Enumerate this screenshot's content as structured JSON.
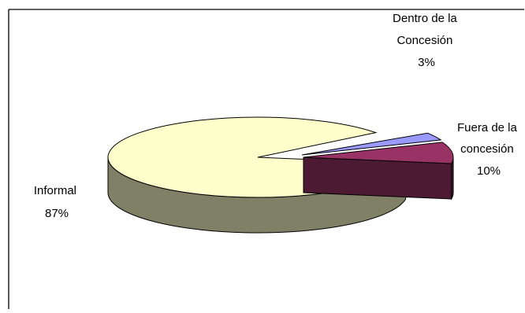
{
  "chart_data": {
    "type": "pie",
    "style": "3d-exploded",
    "legend": "none",
    "slices": [
      {
        "name": "Informal",
        "percent_label": "87%",
        "value": 87,
        "color": "#ffffcc",
        "side_color": "#808066"
      },
      {
        "name": "Dentro de la Concesión",
        "percent_label": "3%",
        "value": 3,
        "color": "#9999ff",
        "side_color": "#4d4d80"
      },
      {
        "name": "Fuera de la concesión",
        "percent_label": "10%",
        "value": 10,
        "color": "#993366",
        "side_color": "#4d1a33"
      }
    ],
    "labels": {
      "informal": [
        "Informal",
        "87%"
      ],
      "dentro": [
        "Dentro de la",
        "Concesión",
        "3%"
      ],
      "fuera": [
        "Fuera de la",
        "concesión",
        "10%"
      ]
    }
  }
}
